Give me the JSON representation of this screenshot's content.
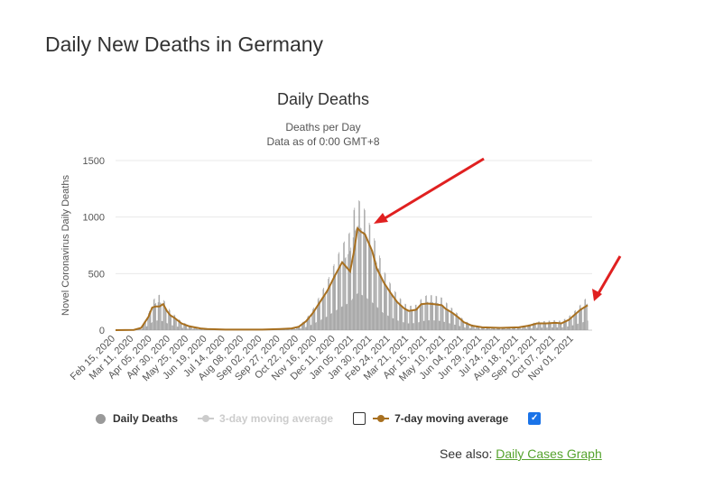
{
  "page": {
    "title": "Daily New Deaths in Germany"
  },
  "chart": {
    "title": "Daily Deaths",
    "subtitle_1": "Deaths per Day",
    "subtitle_2": "Data as of 0:00 GMT+8"
  },
  "chart_data": {
    "type": "bar",
    "title": "Daily Deaths",
    "subtitle": "Deaths per Day",
    "ylabel": "Novel Coronavirus Daily Deaths",
    "ylim": [
      0,
      1500
    ],
    "yticks": [
      0,
      500,
      1000,
      1500
    ],
    "x_tick_labels": [
      "Feb 15, 2020",
      "Mar 11, 2020",
      "Apr 05, 2020",
      "Apr 30, 2020",
      "May 25, 2020",
      "Jun 19, 2020",
      "Jul 14, 2020",
      "Aug 08, 2020",
      "Sep 02, 2020",
      "Sep 27, 2020",
      "Oct 22, 2020",
      "Nov 16, 2020",
      "Dec 11, 2020",
      "Jan 05, 2021",
      "Jan 30, 2021",
      "Feb 24, 2021",
      "Mar 21, 2021",
      "Apr 15, 2021",
      "May 10, 2021",
      "Jun 04, 2021",
      "Jun 29, 2021",
      "Jul 24, 2021",
      "Aug 18, 2021",
      "Sep 12, 2021",
      "Oct 07, 2021",
      "Nov 01, 2021"
    ],
    "grid": true,
    "series": [
      {
        "name": "Daily Deaths",
        "type": "bar",
        "color": "#999999",
        "points": [
          [
            "Feb 15, 2020",
            0
          ],
          [
            "Mar 11, 2020",
            2
          ],
          [
            "Mar 21, 2020",
            20
          ],
          [
            "Mar 31, 2020",
            120
          ],
          [
            "Apr 05, 2020",
            200
          ],
          [
            "Apr 10, 2020",
            240
          ],
          [
            "Apr 15, 2020",
            250
          ],
          [
            "Apr 20, 2020",
            220
          ],
          [
            "Apr 25, 2020",
            180
          ],
          [
            "Apr 30, 2020",
            130
          ],
          [
            "May 05, 2020",
            110
          ],
          [
            "May 15, 2020",
            60
          ],
          [
            "May 25, 2020",
            35
          ],
          [
            "Jun 10, 2020",
            15
          ],
          [
            "Jun 19, 2020",
            10
          ],
          [
            "Jul 14, 2020",
            5
          ],
          [
            "Aug 08, 2020",
            5
          ],
          [
            "Sep 02, 2020",
            5
          ],
          [
            "Sep 27, 2020",
            10
          ],
          [
            "Oct 12, 2020",
            15
          ],
          [
            "Oct 22, 2020",
            30
          ],
          [
            "Nov 01, 2020",
            80
          ],
          [
            "Nov 10, 2020",
            150
          ],
          [
            "Nov 20, 2020",
            250
          ],
          [
            "Nov 30, 2020",
            350
          ],
          [
            "Dec 10, 2020",
            480
          ],
          [
            "Dec 20, 2020",
            600
          ],
          [
            "Dec 31, 2020",
            700
          ],
          [
            "Jan 05, 2021",
            850
          ],
          [
            "Jan 10, 2021",
            930
          ],
          [
            "Jan 15, 2021",
            900
          ],
          [
            "Jan 20, 2021",
            850
          ],
          [
            "Jan 30, 2021",
            700
          ],
          [
            "Feb 05, 2021",
            600
          ],
          [
            "Feb 15, 2021",
            420
          ],
          [
            "Feb 24, 2021",
            330
          ],
          [
            "Mar 05, 2021",
            250
          ],
          [
            "Mar 15, 2021",
            190
          ],
          [
            "Mar 21, 2021",
            170
          ],
          [
            "Mar 31, 2021",
            180
          ],
          [
            "Apr 07, 2021",
            220
          ],
          [
            "Apr 15, 2021",
            250
          ],
          [
            "Apr 25, 2021",
            245
          ],
          [
            "May 05, 2021",
            230
          ],
          [
            "May 10, 2021",
            200
          ],
          [
            "May 20, 2021",
            150
          ],
          [
            "May 30, 2021",
            100
          ],
          [
            "Jun 04, 2021",
            70
          ],
          [
            "Jun 15, 2021",
            40
          ],
          [
            "Jun 29, 2021",
            25
          ],
          [
            "Jul 24, 2021",
            20
          ],
          [
            "Aug 18, 2021",
            25
          ],
          [
            "Sep 01, 2021",
            40
          ],
          [
            "Sep 12, 2021",
            60
          ],
          [
            "Sep 25, 2021",
            65
          ],
          [
            "Oct 07, 2021",
            70
          ],
          [
            "Oct 15, 2021",
            65
          ],
          [
            "Oct 25, 2021",
            95
          ],
          [
            "Nov 01, 2021",
            130
          ],
          [
            "Nov 10, 2021",
            180
          ],
          [
            "Nov 20, 2021",
            240
          ]
        ]
      },
      {
        "name": "7-day moving average",
        "type": "line",
        "color": "#a87020",
        "points": [
          [
            "Feb 15, 2020",
            0
          ],
          [
            "Mar 11, 2020",
            2
          ],
          [
            "Mar 21, 2020",
            20
          ],
          [
            "Mar 31, 2020",
            120
          ],
          [
            "Apr 05, 2020",
            200
          ],
          [
            "Apr 10, 2020",
            210
          ],
          [
            "Apr 15, 2020",
            210
          ],
          [
            "Apr 20, 2020",
            230
          ],
          [
            "Apr 25, 2020",
            170
          ],
          [
            "Apr 30, 2020",
            130
          ],
          [
            "May 05, 2020",
            110
          ],
          [
            "May 15, 2020",
            60
          ],
          [
            "May 25, 2020",
            35
          ],
          [
            "Jun 10, 2020",
            15
          ],
          [
            "Jun 19, 2020",
            10
          ],
          [
            "Jul 14, 2020",
            5
          ],
          [
            "Aug 08, 2020",
            5
          ],
          [
            "Sep 02, 2020",
            5
          ],
          [
            "Sep 27, 2020",
            10
          ],
          [
            "Oct 12, 2020",
            15
          ],
          [
            "Oct 22, 2020",
            30
          ],
          [
            "Nov 01, 2020",
            80
          ],
          [
            "Nov 10, 2020",
            150
          ],
          [
            "Nov 20, 2020",
            250
          ],
          [
            "Nov 30, 2020",
            350
          ],
          [
            "Dec 10, 2020",
            480
          ],
          [
            "Dec 20, 2020",
            600
          ],
          [
            "Dec 31, 2020",
            520
          ],
          [
            "Jan 05, 2021",
            690
          ],
          [
            "Jan 10, 2021",
            900
          ],
          [
            "Jan 15, 2021",
            870
          ],
          [
            "Jan 20, 2021",
            850
          ],
          [
            "Jan 30, 2021",
            700
          ],
          [
            "Feb 05, 2021",
            550
          ],
          [
            "Feb 15, 2021",
            420
          ],
          [
            "Feb 24, 2021",
            330
          ],
          [
            "Mar 05, 2021",
            250
          ],
          [
            "Mar 15, 2021",
            190
          ],
          [
            "Mar 21, 2021",
            170
          ],
          [
            "Mar 31, 2021",
            180
          ],
          [
            "Apr 07, 2021",
            230
          ],
          [
            "Apr 15, 2021",
            235
          ],
          [
            "Apr 25, 2021",
            230
          ],
          [
            "May 05, 2021",
            220
          ],
          [
            "May 10, 2021",
            190
          ],
          [
            "May 20, 2021",
            150
          ],
          [
            "May 30, 2021",
            100
          ],
          [
            "Jun 04, 2021",
            70
          ],
          [
            "Jun 15, 2021",
            40
          ],
          [
            "Jun 29, 2021",
            25
          ],
          [
            "Jul 24, 2021",
            20
          ],
          [
            "Aug 18, 2021",
            25
          ],
          [
            "Sep 01, 2021",
            40
          ],
          [
            "Sep 12, 2021",
            60
          ],
          [
            "Sep 25, 2021",
            60
          ],
          [
            "Oct 07, 2021",
            65
          ],
          [
            "Oct 15, 2021",
            60
          ],
          [
            "Oct 25, 2021",
            90
          ],
          [
            "Nov 01, 2021",
            130
          ],
          [
            "Nov 10, 2021",
            180
          ],
          [
            "Nov 20, 2021",
            220
          ]
        ]
      }
    ]
  },
  "legend": {
    "items": [
      {
        "label": "Daily Deaths",
        "color": "#999999",
        "checkbox": false
      },
      {
        "label": "3-day moving average",
        "color": "#cccccc",
        "checkbox": false,
        "disabled": true
      },
      {
        "label": "7-day moving average",
        "color": "#a87020",
        "checkbox": true
      }
    ]
  },
  "see_also": {
    "text": "See also:",
    "link": "Daily Cases Graph"
  },
  "annotation_color": "#e02020"
}
